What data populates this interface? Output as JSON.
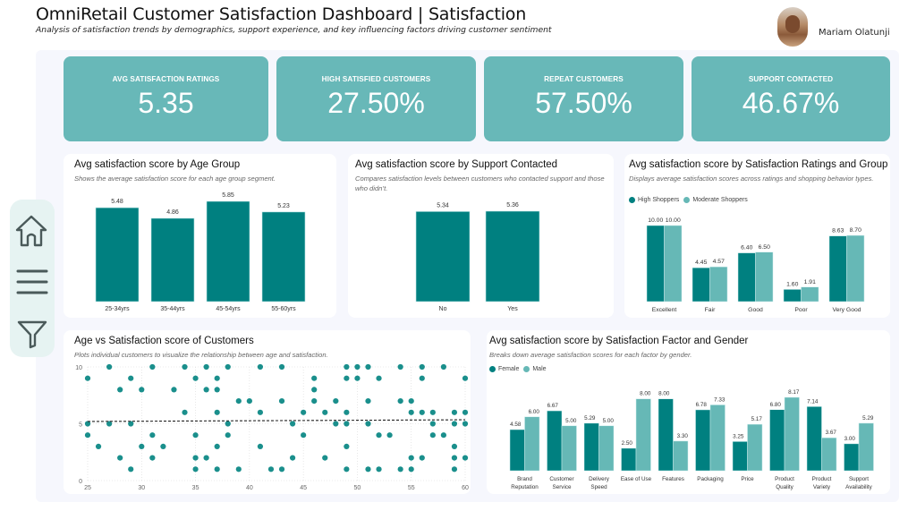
{
  "header": {
    "title": "OmniRetail Customer Satisfaction Dashboard | Satisfaction",
    "subtitle": "Analysis of satisfaction trends by demographics, support experience, and key influencing factors driving customer sentiment",
    "user_name": "Mariam Olatunji"
  },
  "sidebar": {
    "items": [
      {
        "icon": "home-icon",
        "label": "Home"
      },
      {
        "icon": "menu-icon",
        "label": "Menu"
      },
      {
        "icon": "filter-icon",
        "label": "Filter"
      }
    ]
  },
  "colors": {
    "primary": "#008080",
    "secondary": "#66b8b6",
    "kpi_bg": "#68b8b8"
  },
  "kpis": [
    {
      "label": "AVG SATISFACTION RATINGS",
      "value": "5.35"
    },
    {
      "label": "HIGH SATISFIED CUSTOMERS",
      "value": "27.50%"
    },
    {
      "label": "REPEAT CUSTOMERS",
      "value": "57.50%"
    },
    {
      "label": "SUPPORT CONTACTED",
      "value": "46.67%"
    }
  ],
  "chart_data": [
    {
      "id": "age_group",
      "type": "bar",
      "title": "Avg satisfaction score by Age Group",
      "subtitle": "Shows the average satisfaction score for each age group segment.",
      "categories": [
        "25-34yrs",
        "35-44yrs",
        "45-54yrs",
        "55-60yrs"
      ],
      "values": [
        5.48,
        4.86,
        5.85,
        5.23
      ],
      "labels": [
        "5.48",
        "4.86",
        "5.85",
        "5.23"
      ],
      "xlabel": "",
      "ylabel": "",
      "ylim": [
        0,
        5.85
      ]
    },
    {
      "id": "support",
      "type": "bar",
      "title": "Avg satisfaction score by Support Contacted",
      "subtitle": "Compares satisfaction levels between customers who contacted support and those who didn’t.",
      "categories": [
        "No",
        "Yes"
      ],
      "values": [
        5.34,
        5.36
      ],
      "labels": [
        "5.34",
        "5.36"
      ],
      "xlabel": "",
      "ylabel": "",
      "ylim": [
        0,
        5.36
      ]
    },
    {
      "id": "ratings_group",
      "type": "bar",
      "title": "Avg satisfaction score by Satisfaction Ratings and Group",
      "subtitle": "Displays average satisfaction scores across ratings and shopping behavior types.",
      "categories": [
        "Excellent",
        "Fair",
        "Good",
        "Poor",
        "Very Good"
      ],
      "series": [
        {
          "name": "High Shoppers",
          "values": [
            10.0,
            4.45,
            6.4,
            1.6,
            8.63
          ],
          "labels": [
            "10.00",
            "4.45",
            "6.40",
            "1.60",
            "8.63"
          ]
        },
        {
          "name": "Moderate Shoppers",
          "values": [
            10.0,
            4.57,
            6.5,
            1.91,
            8.7
          ],
          "labels": [
            "10.00",
            "4.57",
            "6.50",
            "1.91",
            "8.70"
          ]
        }
      ],
      "legend": "top-left",
      "ylim": [
        0,
        10
      ]
    },
    {
      "id": "age_scatter",
      "type": "scatter",
      "title": "Age vs Satisfaction score of Customers",
      "subtitle": "Plots individual customers to visualize the relationship between age and satisfaction.",
      "xlim": [
        25,
        60
      ],
      "ylim": [
        0,
        10
      ],
      "xticks": [
        25,
        30,
        35,
        40,
        45,
        50,
        55,
        60
      ],
      "yticks": [
        0,
        5,
        10
      ],
      "grid": true,
      "trend_line": {
        "y_start": 5.2,
        "y_end": 5.35,
        "style": "dashed"
      },
      "points": [
        [
          27,
          10
        ],
        [
          31,
          10
        ],
        [
          34,
          10
        ],
        [
          36,
          10
        ],
        [
          38,
          10
        ],
        [
          41,
          10
        ],
        [
          43,
          10
        ],
        [
          49,
          10
        ],
        [
          50,
          10
        ],
        [
          51,
          10
        ],
        [
          54,
          10
        ],
        [
          56,
          10
        ],
        [
          58,
          10
        ],
        [
          25,
          9
        ],
        [
          29,
          9
        ],
        [
          35,
          9
        ],
        [
          37,
          9
        ],
        [
          46,
          9
        ],
        [
          49,
          9
        ],
        [
          50,
          9
        ],
        [
          52,
          9
        ],
        [
          56,
          9
        ],
        [
          60,
          9
        ],
        [
          28,
          8
        ],
        [
          30,
          8
        ],
        [
          33,
          8
        ],
        [
          36,
          8
        ],
        [
          37,
          8
        ],
        [
          46,
          8
        ],
        [
          39,
          7
        ],
        [
          40,
          7
        ],
        [
          43,
          7
        ],
        [
          46,
          7
        ],
        [
          48,
          7
        ],
        [
          51,
          7
        ],
        [
          54,
          7
        ],
        [
          55,
          7
        ],
        [
          34,
          6
        ],
        [
          37,
          6
        ],
        [
          41,
          6
        ],
        [
          45,
          6
        ],
        [
          47,
          6
        ],
        [
          49,
          6
        ],
        [
          55,
          6
        ],
        [
          56,
          6
        ],
        [
          57,
          6
        ],
        [
          59,
          6
        ],
        [
          60,
          6
        ],
        [
          25,
          5
        ],
        [
          27,
          5
        ],
        [
          29,
          5
        ],
        [
          38,
          5
        ],
        [
          44,
          5
        ],
        [
          48,
          5
        ],
        [
          49,
          5
        ],
        [
          51,
          5
        ],
        [
          57,
          5
        ],
        [
          59,
          5
        ],
        [
          60,
          5
        ],
        [
          25,
          4
        ],
        [
          31,
          4
        ],
        [
          35,
          4
        ],
        [
          38,
          4
        ],
        [
          45,
          4
        ],
        [
          52,
          4
        ],
        [
          53,
          4
        ],
        [
          57,
          4
        ],
        [
          58,
          4
        ],
        [
          26,
          3
        ],
        [
          30,
          3
        ],
        [
          32,
          3
        ],
        [
          37,
          3
        ],
        [
          41,
          3
        ],
        [
          49,
          3
        ],
        [
          59,
          3
        ],
        [
          28,
          2
        ],
        [
          31,
          2
        ],
        [
          35,
          2
        ],
        [
          36,
          2
        ],
        [
          44,
          2
        ],
        [
          47,
          2
        ],
        [
          55,
          2
        ],
        [
          56,
          2
        ],
        [
          59,
          2
        ],
        [
          60,
          2
        ],
        [
          29,
          1
        ],
        [
          35,
          1
        ],
        [
          37,
          1
        ],
        [
          39,
          1
        ],
        [
          42,
          1
        ],
        [
          43,
          1
        ],
        [
          49,
          1
        ],
        [
          51,
          1
        ],
        [
          52,
          1
        ],
        [
          54,
          1
        ],
        [
          55,
          1
        ],
        [
          59,
          1
        ]
      ]
    },
    {
      "id": "factor_gender",
      "type": "bar",
      "title": "Avg satisfaction score by Satisfaction Factor and Gender",
      "subtitle": "Breaks down average satisfaction scores for each factor by gender.",
      "categories": [
        "Brand Reputation",
        "Customer Service",
        "Delivery Speed",
        "Ease of Use",
        "Features",
        "Packaging",
        "Price",
        "Product Quality",
        "Product Variety",
        "Support Availability"
      ],
      "category_lines": [
        [
          "Brand",
          "Reputation"
        ],
        [
          "Customer",
          "Service"
        ],
        [
          "Delivery",
          "Speed"
        ],
        [
          "Ease of Use"
        ],
        [
          "Features"
        ],
        [
          "Packaging"
        ],
        [
          "Price"
        ],
        [
          "Product",
          "Quality"
        ],
        [
          "Product",
          "Variety"
        ],
        [
          "Support",
          "Availability"
        ]
      ],
      "series": [
        {
          "name": "Female",
          "values": [
            4.58,
            6.67,
            5.29,
            2.5,
            8.0,
            6.78,
            3.25,
            6.8,
            7.14,
            3.0
          ],
          "labels": [
            "4.58",
            "6.67",
            "5.29",
            "2.50",
            "8.00",
            "6.78",
            "3.25",
            "6.80",
            "7.14",
            "3.00"
          ]
        },
        {
          "name": "Male",
          "values": [
            6.0,
            5.0,
            5.0,
            8.0,
            3.3,
            7.33,
            5.17,
            8.17,
            3.67,
            5.29
          ],
          "labels": [
            "6.00",
            "5.00",
            "5.00",
            "8.00",
            "3.30",
            "7.33",
            "5.17",
            "8.17",
            "3.67",
            "5.29"
          ]
        }
      ],
      "legend": "top-left",
      "ylim": [
        0,
        8.17
      ]
    }
  ]
}
